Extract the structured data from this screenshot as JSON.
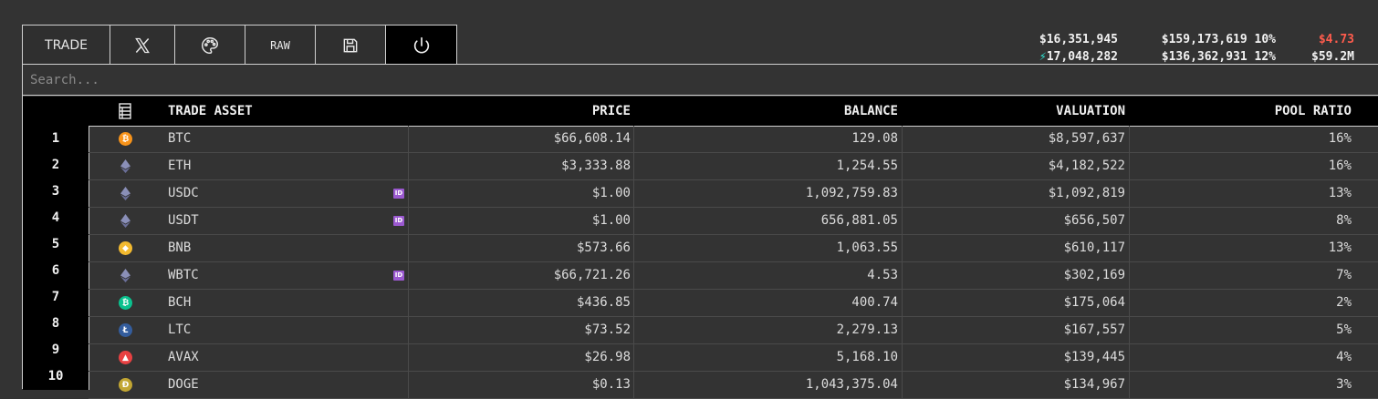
{
  "toolbar": {
    "trade_label": "TRADE",
    "raw_label": "RAW",
    "icons": [
      "x-logo-icon",
      "palette-icon",
      "save-icon",
      "power-icon"
    ]
  },
  "stats": {
    "col1": {
      "line1": "$16,351,945",
      "line2": "17,048,282",
      "line2_icon": "lightning-icon"
    },
    "col2": {
      "line1": "$159,173,619 10%",
      "line2": "$136,362,931 12%"
    },
    "col3": {
      "line1": "$4.73",
      "line2": "$59.2M"
    },
    "colors": {
      "highlight": "#ff5c4d",
      "bolt": "#2ee6d6"
    }
  },
  "search": {
    "placeholder": "Search...",
    "value": ""
  },
  "table": {
    "headers": {
      "icon": "list-icon",
      "asset": "TRADE ASSET",
      "price": "PRICE",
      "balance": "BALANCE",
      "valuation": "VALUATION",
      "pool_ratio": "POOL RATIO"
    },
    "rows": [
      {
        "rank": "1",
        "icon": "btc-icon",
        "color": "#f7931a",
        "glyph": "₿",
        "asset": "BTC",
        "badge": "",
        "price": "$66,608.14",
        "balance": "129.08",
        "valuation": "$8,597,637",
        "pool_ratio": "16%"
      },
      {
        "rank": "2",
        "icon": "eth-icon",
        "color": "",
        "glyph": "",
        "asset": "ETH",
        "badge": "",
        "price": "$3,333.88",
        "balance": "1,254.55",
        "valuation": "$4,182,522",
        "pool_ratio": "16%"
      },
      {
        "rank": "3",
        "icon": "eth-icon",
        "color": "",
        "glyph": "",
        "asset": "USDC",
        "badge": "ID",
        "price": "$1.00",
        "balance": "1,092,759.83",
        "valuation": "$1,092,819",
        "pool_ratio": "13%"
      },
      {
        "rank": "4",
        "icon": "eth-icon",
        "color": "",
        "glyph": "",
        "asset": "USDT",
        "badge": "ID",
        "price": "$1.00",
        "balance": "656,881.05",
        "valuation": "$656,507",
        "pool_ratio": "8%"
      },
      {
        "rank": "5",
        "icon": "bnb-icon",
        "color": "#f3ba2f",
        "glyph": "◆",
        "asset": "BNB",
        "badge": "",
        "price": "$573.66",
        "balance": "1,063.55",
        "valuation": "$610,117",
        "pool_ratio": "13%"
      },
      {
        "rank": "6",
        "icon": "eth-icon",
        "color": "",
        "glyph": "",
        "asset": "WBTC",
        "badge": "ID",
        "price": "$66,721.26",
        "balance": "4.53",
        "valuation": "$302,169",
        "pool_ratio": "7%"
      },
      {
        "rank": "7",
        "icon": "bch-icon",
        "color": "#0ac18e",
        "glyph": "₿",
        "asset": "BCH",
        "badge": "",
        "price": "$436.85",
        "balance": "400.74",
        "valuation": "$175,064",
        "pool_ratio": "2%"
      },
      {
        "rank": "8",
        "icon": "ltc-icon",
        "color": "#345d9d",
        "glyph": "Ł",
        "asset": "LTC",
        "badge": "",
        "price": "$73.52",
        "balance": "2,279.13",
        "valuation": "$167,557",
        "pool_ratio": "5%"
      },
      {
        "rank": "9",
        "icon": "avax-icon",
        "color": "#e84142",
        "glyph": "▲",
        "asset": "AVAX",
        "badge": "",
        "price": "$26.98",
        "balance": "5,168.10",
        "valuation": "$139,445",
        "pool_ratio": "4%"
      },
      {
        "rank": "10",
        "icon": "doge-icon",
        "color": "#c2a633",
        "glyph": "Ð",
        "asset": "DOGE",
        "badge": "",
        "price": "$0.13",
        "balance": "1,043,375.04",
        "valuation": "$134,967",
        "pool_ratio": "3%"
      }
    ]
  }
}
